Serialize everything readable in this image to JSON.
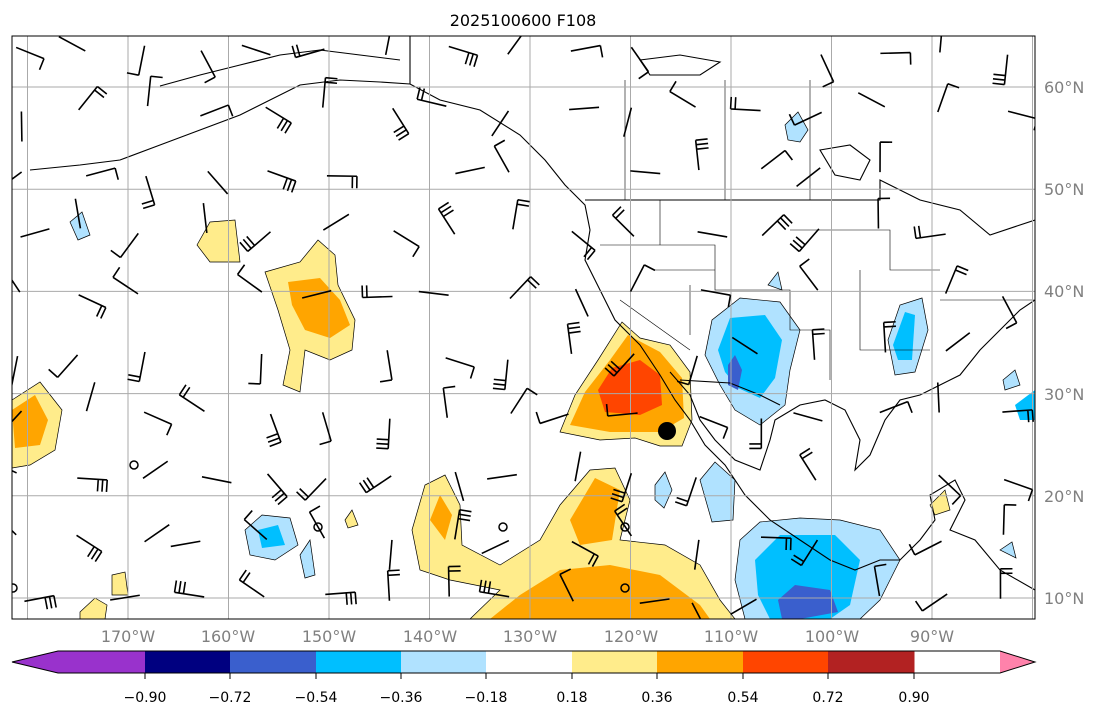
{
  "title": "2025100600 F108",
  "map": {
    "lon_labels": [
      "170°W",
      "160°W",
      "150°W",
      "140°W",
      "130°W",
      "120°W",
      "110°W",
      "100°W",
      "90°W"
    ],
    "lat_labels": [
      "60°N",
      "50°N",
      "40°N",
      "30°N",
      "20°N",
      "10°N"
    ]
  },
  "colorbar": {
    "colors": [
      "#9932CC",
      "#000080",
      "#3A5FCD",
      "#00BFFF",
      "#B0E2FF",
      "#FFFFFF",
      "#FFEC8B",
      "#FFA500",
      "#FF4500",
      "#B22222",
      "#FF82AB"
    ],
    "tick_labels": [
      "−0.90",
      "−0.72",
      "−0.54",
      "−0.36",
      "−0.18",
      "0.18",
      "0.36",
      "0.54",
      "0.72",
      "0.90"
    ]
  }
}
